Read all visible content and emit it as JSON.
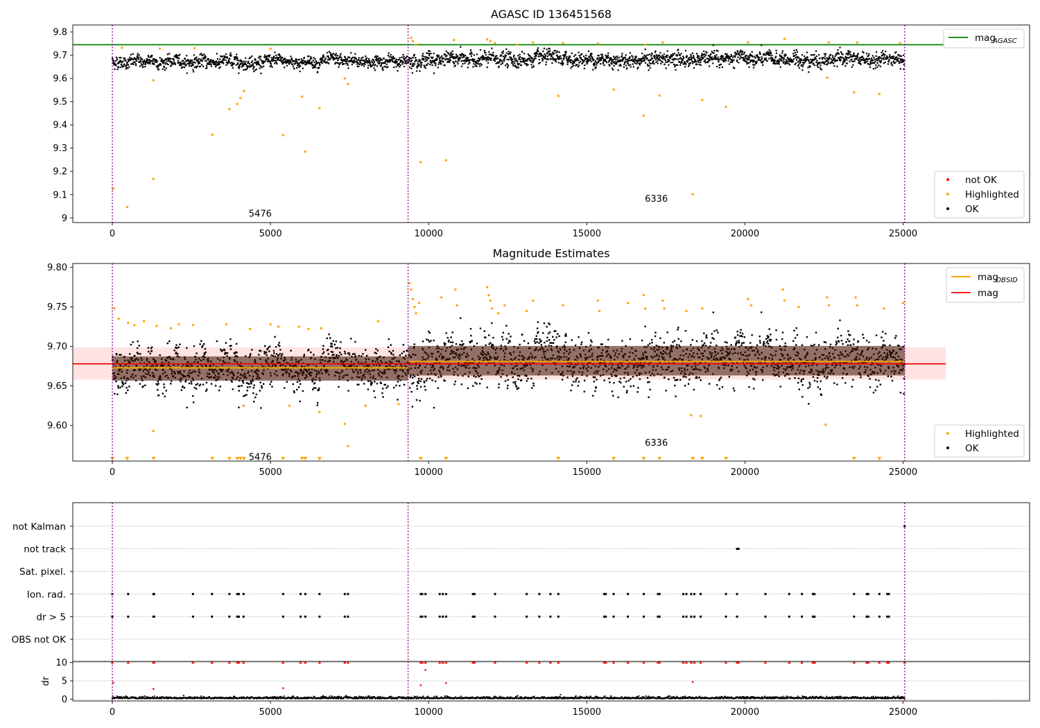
{
  "colors": {
    "ok": "#000000",
    "not_ok": "#ff0000",
    "highlighted": "#ffa500",
    "mag_agasc": "#008000",
    "mag": "#ff0000",
    "mag_obsid": "#ffa500",
    "obsid_boundary": "#800080",
    "mag_band": "#ffc0c0"
  },
  "obsid_boundaries": [
    0,
    9350,
    25050
  ],
  "chart_data": [
    {
      "type": "scatter",
      "title": "AGASC ID 136451568",
      "xlabel": "",
      "ylabel": "",
      "xlim": [
        -1250,
        29000
      ],
      "ylim": [
        8.98,
        9.83
      ],
      "x_ticks": [
        0,
        5000,
        10000,
        15000,
        20000,
        25000
      ],
      "y_ticks": [
        9.0,
        9.1,
        9.2,
        9.3,
        9.4,
        9.5,
        9.6,
        9.7,
        9.8
      ],
      "grid": false,
      "hlines": [
        {
          "name": "mag_AGASC",
          "y": 9.745,
          "x_range": [
            -1250,
            26350
          ]
        }
      ],
      "legends": [
        {
          "placement": "upper right",
          "entries": [
            {
              "label_main": "mag",
              "label_sub": "AGASC",
              "kind": "line",
              "color_key": "mag_agasc"
            }
          ]
        },
        {
          "placement": "lower right",
          "entries": [
            {
              "label": "not OK",
              "kind": "dot",
              "color_key": "not_ok"
            },
            {
              "label": "Highlighted",
              "kind": "dot",
              "color_key": "highlighted"
            },
            {
              "label": "OK",
              "kind": "dot",
              "color_key": "ok"
            }
          ]
        }
      ],
      "annotations": [
        {
          "text": "5476",
          "x": 4676,
          "y": 9.0
        },
        {
          "text": "6336",
          "x": 17200,
          "y": 9.063
        }
      ],
      "series": [
        {
          "name": "OK",
          "description_band": {
            "segments": [
              {
                "x": [
                  0,
                  9350
                ],
                "center": 9.672,
                "spread": 0.028
              },
              {
                "x": [
                  9350,
                  25050
                ],
                "center": 9.682,
                "spread": 0.034
              }
            ]
          }
        },
        {
          "name": "Highlighted",
          "points": [
            [
              30,
              9.125
            ],
            [
              470,
              9.047
            ],
            [
              1300,
              9.168
            ],
            [
              1300,
              9.592
            ],
            [
              3160,
              9.358
            ],
            [
              3700,
              9.468
            ],
            [
              3950,
              9.49
            ],
            [
              4050,
              9.516
            ],
            [
              4160,
              9.546
            ],
            [
              5400,
              9.356
            ],
            [
              6000,
              9.522
            ],
            [
              6100,
              9.285
            ],
            [
              6550,
              9.472
            ],
            [
              7350,
              9.6
            ],
            [
              7450,
              9.576
            ],
            [
              9750,
              9.24
            ],
            [
              10550,
              9.248
            ],
            [
              14100,
              9.525
            ],
            [
              15850,
              9.552
            ],
            [
              16800,
              9.44
            ],
            [
              17300,
              9.526
            ],
            [
              18350,
              9.102
            ],
            [
              18650,
              9.507
            ],
            [
              19400,
              9.478
            ],
            [
              23450,
              9.54
            ],
            [
              24250,
              9.533
            ],
            [
              22600,
              9.603
            ],
            [
              300,
              9.732
            ],
            [
              1500,
              9.728
            ],
            [
              2600,
              9.73
            ],
            [
              5000,
              9.728
            ],
            [
              9450,
              9.775
            ],
            [
              9500,
              9.76
            ],
            [
              9600,
              9.745
            ],
            [
              10800,
              9.765
            ],
            [
              11850,
              9.768
            ],
            [
              11950,
              9.76
            ],
            [
              12100,
              9.752
            ],
            [
              12800,
              9.745
            ],
            [
              13300,
              9.755
            ],
            [
              14250,
              9.752
            ],
            [
              15350,
              9.75
            ],
            [
              16850,
              9.745
            ],
            [
              17400,
              9.755
            ],
            [
              20100,
              9.755
            ],
            [
              21250,
              9.77
            ],
            [
              22650,
              9.755
            ],
            [
              23550,
              9.755
            ],
            [
              24900,
              9.752
            ]
          ]
        }
      ]
    },
    {
      "type": "scatter",
      "title": "Magnitude Estimates",
      "xlabel": "",
      "ylabel": "",
      "xlim": [
        -1250,
        29000
      ],
      "ylim": [
        9.555,
        9.805
      ],
      "x_ticks": [
        0,
        5000,
        10000,
        15000,
        20000,
        25000
      ],
      "y_ticks": [
        9.6,
        9.65,
        9.7,
        9.75,
        9.8
      ],
      "y_tick_labels": [
        "9.60",
        "9.65",
        "9.70",
        "9.75",
        "9.80"
      ],
      "grid": false,
      "hlines": [
        {
          "name": "mag",
          "y": 9.678,
          "x_range": [
            -1250,
            26350
          ]
        },
        {
          "name": "mag_OBSID",
          "segments": [
            {
              "x": [
                0,
                9350
              ],
              "y": 9.673
            },
            {
              "x": [
                9350,
                25050
              ],
              "y": 9.681
            }
          ]
        }
      ],
      "bands": [
        {
          "name": "mag",
          "y_range": [
            9.658,
            9.699
          ],
          "x_range": [
            -1250,
            26350
          ]
        }
      ],
      "legends": [
        {
          "placement": "upper right",
          "entries": [
            {
              "label_main": "mag",
              "label_sub": "OBSID",
              "kind": "line",
              "color_key": "mag_obsid"
            },
            {
              "label": "mag",
              "kind": "line",
              "color_key": "mag"
            }
          ]
        },
        {
          "placement": "lower right",
          "entries": [
            {
              "label": "Highlighted",
              "kind": "dot",
              "color_key": "highlighted"
            },
            {
              "label": "OK",
              "kind": "dot",
              "color_key": "ok"
            }
          ]
        }
      ],
      "annotations": [
        {
          "text": "5476",
          "x": 4676,
          "y": 9.56
        },
        {
          "text": "6336",
          "x": 17200,
          "y": 9.578
        }
      ],
      "offscale_markers_x": [
        0,
        470,
        1300,
        3160,
        3700,
        3950,
        4050,
        4160,
        5400,
        6000,
        6100,
        6550,
        9750,
        10550,
        14100,
        15850,
        16800,
        17300,
        18350,
        18650,
        19400,
        23450,
        24250
      ],
      "series": [
        {
          "name": "OK",
          "description_band": {
            "segments": [
              {
                "x": [
                  0,
                  9350
                ],
                "center": 9.672,
                "spread": 0.028
              },
              {
                "x": [
                  9350,
                  25050
                ],
                "center": 9.682,
                "spread": 0.034
              }
            ]
          }
        },
        {
          "name": "Highlighted",
          "points": [
            [
              60,
              9.748
            ],
            [
              200,
              9.735
            ],
            [
              500,
              9.73
            ],
            [
              700,
              9.727
            ],
            [
              1000,
              9.732
            ],
            [
              1400,
              9.726
            ],
            [
              1850,
              9.723
            ],
            [
              2100,
              9.728
            ],
            [
              2550,
              9.727
            ],
            [
              3600,
              9.728
            ],
            [
              4350,
              9.722
            ],
            [
              5000,
              9.728
            ],
            [
              5250,
              9.725
            ],
            [
              5900,
              9.725
            ],
            [
              6200,
              9.722
            ],
            [
              6600,
              9.723
            ],
            [
              8400,
              9.732
            ],
            [
              1300,
              9.593
            ],
            [
              7350,
              9.602
            ],
            [
              7450,
              9.574
            ],
            [
              4150,
              9.625
            ],
            [
              5600,
              9.625
            ],
            [
              6550,
              9.617
            ],
            [
              8000,
              9.625
            ],
            [
              9050,
              9.627
            ],
            [
              9400,
              9.78
            ],
            [
              9450,
              9.772
            ],
            [
              9500,
              9.76
            ],
            [
              9550,
              9.75
            ],
            [
              9600,
              9.742
            ],
            [
              9700,
              9.755
            ],
            [
              10400,
              9.762
            ],
            [
              10850,
              9.772
            ],
            [
              10900,
              9.752
            ],
            [
              11850,
              9.775
            ],
            [
              11900,
              9.765
            ],
            [
              11950,
              9.758
            ],
            [
              12000,
              9.748
            ],
            [
              12200,
              9.742
            ],
            [
              12400,
              9.752
            ],
            [
              13100,
              9.745
            ],
            [
              13300,
              9.758
            ],
            [
              14250,
              9.752
            ],
            [
              15350,
              9.758
            ],
            [
              15400,
              9.745
            ],
            [
              16300,
              9.755
            ],
            [
              16800,
              9.765
            ],
            [
              16850,
              9.748
            ],
            [
              17400,
              9.758
            ],
            [
              17450,
              9.748
            ],
            [
              18150,
              9.745
            ],
            [
              18650,
              9.748
            ],
            [
              20100,
              9.76
            ],
            [
              20200,
              9.752
            ],
            [
              21200,
              9.772
            ],
            [
              21250,
              9.758
            ],
            [
              21700,
              9.75
            ],
            [
              22600,
              9.762
            ],
            [
              22650,
              9.752
            ],
            [
              23500,
              9.762
            ],
            [
              23550,
              9.752
            ],
            [
              24400,
              9.748
            ],
            [
              25000,
              9.755
            ],
            [
              22550,
              9.601
            ],
            [
              18300,
              9.613
            ],
            [
              18600,
              9.612
            ]
          ]
        }
      ]
    },
    {
      "type": "scatter",
      "title": "",
      "xlabel": "",
      "ylabel": "",
      "xlim": [
        -1250,
        29000
      ],
      "x_ticks": [
        0,
        5000,
        10000,
        15000,
        20000,
        25000
      ],
      "grid": true,
      "flag_rows": [
        "not Kalman",
        "not track",
        "Sat. pixel.",
        "Ion. rad.",
        "dr > 5",
        "OBS not OK"
      ],
      "flag_events": {
        "not Kalman": [
          25050
        ],
        "not track": [
          19750,
          19800
        ],
        "Sat. pixel.": [],
        "Ion. rad.": [
          0,
          500,
          1300,
          1320,
          2550,
          3150,
          3700,
          3950,
          4000,
          4150,
          5400,
          5950,
          6100,
          6550,
          7350,
          7450,
          9750,
          9800,
          9900,
          10350,
          10450,
          10550,
          11400,
          11450,
          12100,
          13100,
          13500,
          13850,
          14100,
          15550,
          15600,
          15850,
          16300,
          16800,
          17250,
          17300,
          18050,
          18150,
          18300,
          18400,
          18600,
          19400,
          19750,
          20650,
          21400,
          21800,
          22150,
          22200,
          23450,
          23850,
          23900,
          24250,
          24500,
          24550
        ],
        "dr > 5": [
          0,
          500,
          1300,
          1320,
          2550,
          3150,
          3700,
          3950,
          4000,
          4150,
          5400,
          5950,
          6100,
          6550,
          7350,
          7450,
          9750,
          9800,
          9900,
          10350,
          10450,
          10550,
          11400,
          11450,
          12100,
          13100,
          13500,
          13850,
          14100,
          15550,
          15600,
          15850,
          16300,
          16800,
          17250,
          17300,
          18050,
          18150,
          18300,
          18400,
          18600,
          19400,
          19750,
          20650,
          21400,
          21800,
          22150,
          22200,
          23450,
          23850,
          23900,
          24250,
          24500,
          24550
        ],
        "OBS not OK": []
      }
    },
    {
      "type": "scatter",
      "title": "",
      "xlabel": "",
      "ylabel": "dr",
      "xlim": [
        -1250,
        29000
      ],
      "ylim": [
        -0.5,
        10.3
      ],
      "x_ticks": [
        0,
        5000,
        10000,
        15000,
        20000,
        25000
      ],
      "y_ticks": [
        0,
        5,
        10
      ],
      "grid": true,
      "series": [
        {
          "name": "OK",
          "description_band": {
            "center": 0.3,
            "spread": 0.4
          }
        },
        {
          "name": "not OK",
          "points_clipped_at": 10,
          "x": [
            0,
            500,
            1300,
            1320,
            2550,
            3150,
            3700,
            3950,
            4000,
            4150,
            5400,
            5950,
            6100,
            6550,
            7350,
            7450,
            9750,
            9800,
            9900,
            10350,
            10450,
            10550,
            11400,
            11450,
            12100,
            13100,
            13500,
            13850,
            14100,
            15550,
            15600,
            15850,
            16300,
            16800,
            17250,
            17300,
            18050,
            18150,
            18300,
            18400,
            18600,
            19400,
            19750,
            19800,
            20650,
            21400,
            21800,
            22150,
            22200,
            23450,
            23850,
            23900,
            24250,
            24500,
            24550,
            25050
          ]
        },
        {
          "name": "not OK low",
          "points": [
            [
              30,
              4.5
            ],
            [
              1300,
              2.8
            ],
            [
              5400,
              3.0
            ],
            [
              9750,
              3.8
            ],
            [
              9900,
              8.0
            ],
            [
              10550,
              4.4
            ],
            [
              18350,
              4.7
            ]
          ]
        }
      ]
    }
  ]
}
